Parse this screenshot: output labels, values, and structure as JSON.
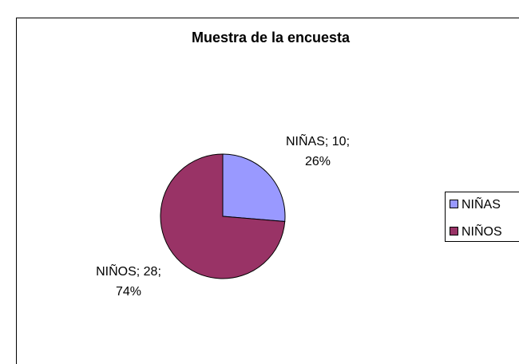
{
  "chart_data": {
    "type": "pie",
    "title": "Muestra de la encuesta",
    "categories": [
      "NIÑAS",
      "NIÑOS"
    ],
    "values": [
      10,
      28
    ],
    "value_labels": [
      [
        "NIÑAS; 10;",
        "26%"
      ],
      [
        "NIÑOS; 28;",
        "74%"
      ]
    ],
    "colors": [
      "#9999ff",
      "#993366"
    ],
    "legend": "right"
  }
}
